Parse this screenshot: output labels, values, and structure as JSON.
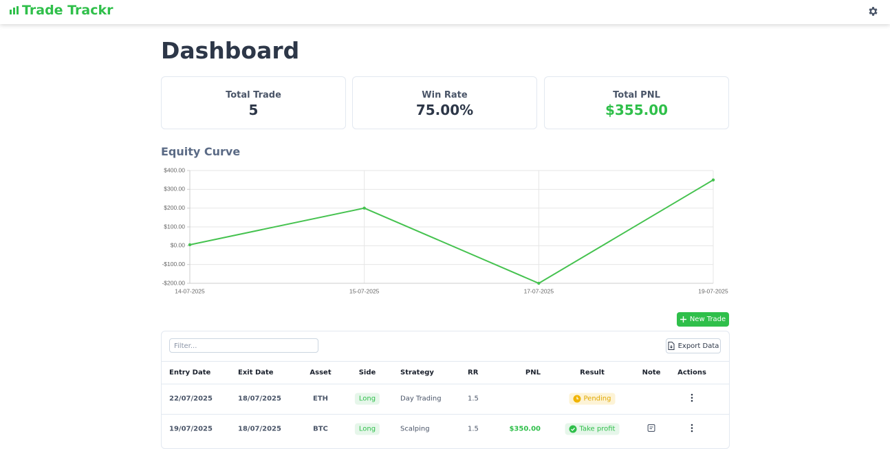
{
  "header": {
    "app_name": "Trade Trackr"
  },
  "page_title": "Dashboard",
  "stats": [
    {
      "label": "Total Trade",
      "value": "5"
    },
    {
      "label": "Win Rate",
      "value": "75.00%"
    },
    {
      "label": "Total PNL",
      "value": "$355.00"
    }
  ],
  "chart_data": {
    "type": "line",
    "title": "Equity Curve",
    "categories": [
      "14-07-2025",
      "15-07-2025",
      "17-07-2025",
      "19-07-2025"
    ],
    "series": [
      {
        "name": "Equity",
        "color": "#45c24f",
        "values": [
          5,
          200,
          -200,
          350
        ]
      }
    ],
    "ylim": [
      -200,
      400
    ],
    "yticks": [
      {
        "value": -200,
        "label": "-$200.00"
      },
      {
        "value": -100,
        "label": "-$100.00"
      },
      {
        "value": 0,
        "label": "$0.00"
      },
      {
        "value": 100,
        "label": "$100.00"
      },
      {
        "value": 200,
        "label": "$200.00"
      },
      {
        "value": 300,
        "label": "$300.00"
      },
      {
        "value": 400,
        "label": "$400.00"
      }
    ],
    "grid": true
  },
  "buttons": {
    "new_trade": "New Trade",
    "export": "Export Data"
  },
  "filter_placeholder": "Filter...",
  "table": {
    "columns": [
      "Entry Date",
      "Exit Date",
      "Asset",
      "Side",
      "Strategy",
      "RR",
      "PNL",
      "Result",
      "Note",
      "Actions"
    ],
    "rows": [
      {
        "entry_date": "22/07/2025",
        "exit_date": "18/07/2025",
        "asset": "ETH",
        "side": "Long",
        "strategy": "Day Trading",
        "rr": 1.5,
        "result": "Pending"
      },
      {
        "entry_date": "19/07/2025",
        "exit_date": "18/07/2025",
        "asset": "BTC",
        "side": "Long",
        "strategy": "Scalping",
        "rr": 1.5,
        "pnl": "$350.00",
        "result": "Take profit",
        "note": true
      }
    ]
  }
}
